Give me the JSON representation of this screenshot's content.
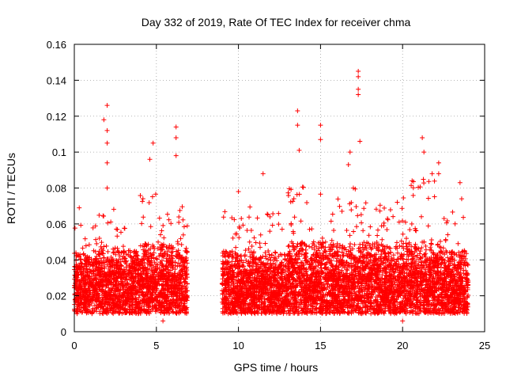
{
  "chart_data": {
    "type": "scatter",
    "title": "Day 332 of 2019, Rate Of TEC Index for receiver chma",
    "xlabel": "GPS time / hours",
    "ylabel": "ROTI / TECUs",
    "xlim": [
      0,
      25
    ],
    "ylim": [
      0,
      0.16
    ],
    "x_ticks": [
      0,
      5,
      10,
      15,
      20,
      25
    ],
    "y_ticks": [
      0,
      0.02,
      0.04,
      0.06,
      0.08,
      0.1,
      0.12,
      0.14,
      0.16
    ],
    "x_tick_labels": [
      "0",
      "5",
      "10",
      "15",
      "20",
      "25"
    ],
    "y_tick_labels": [
      "0",
      "0.02",
      "0.04",
      "0.06",
      "0.08",
      "0.1",
      "0.12",
      "0.14",
      "0.16"
    ],
    "grid": true,
    "marker": "+",
    "color": "#ff0000",
    "data_gap_hours": [
      6.9,
      9.0
    ],
    "notable_points": [
      {
        "x": 0.3,
        "y": 0.069
      },
      {
        "x": 1.8,
        "y": 0.118
      },
      {
        "x": 2.0,
        "y": 0.126
      },
      {
        "x": 2.0,
        "y": 0.112
      },
      {
        "x": 2.0,
        "y": 0.105
      },
      {
        "x": 2.0,
        "y": 0.094
      },
      {
        "x": 2.0,
        "y": 0.08
      },
      {
        "x": 4.8,
        "y": 0.105
      },
      {
        "x": 4.6,
        "y": 0.096
      },
      {
        "x": 6.2,
        "y": 0.114
      },
      {
        "x": 6.2,
        "y": 0.108
      },
      {
        "x": 6.2,
        "y": 0.098
      },
      {
        "x": 10.0,
        "y": 0.078
      },
      {
        "x": 11.5,
        "y": 0.088
      },
      {
        "x": 13.6,
        "y": 0.123
      },
      {
        "x": 13.6,
        "y": 0.115
      },
      {
        "x": 13.7,
        "y": 0.101
      },
      {
        "x": 15.0,
        "y": 0.115
      },
      {
        "x": 15.0,
        "y": 0.107
      },
      {
        "x": 16.8,
        "y": 0.1
      },
      {
        "x": 16.7,
        "y": 0.093
      },
      {
        "x": 17.3,
        "y": 0.145
      },
      {
        "x": 17.3,
        "y": 0.142
      },
      {
        "x": 17.3,
        "y": 0.135
      },
      {
        "x": 17.3,
        "y": 0.132
      },
      {
        "x": 17.4,
        "y": 0.106
      },
      {
        "x": 17.0,
        "y": 0.08
      },
      {
        "x": 21.2,
        "y": 0.108
      },
      {
        "x": 21.3,
        "y": 0.1
      },
      {
        "x": 21.8,
        "y": 0.088
      },
      {
        "x": 22.2,
        "y": 0.094
      },
      {
        "x": 22.2,
        "y": 0.088
      },
      {
        "x": 23.5,
        "y": 0.083
      },
      {
        "x": 23.6,
        "y": 0.074
      },
      {
        "x": 20.0,
        "y": 0.006
      },
      {
        "x": 5.4,
        "y": 0.006
      }
    ],
    "density_profile": [
      {
        "from": 0.0,
        "to": 1.5,
        "base_high": 0.045,
        "spike": 0.06
      },
      {
        "from": 1.5,
        "to": 2.5,
        "base_high": 0.05,
        "spike": 0.07
      },
      {
        "from": 2.5,
        "to": 4.0,
        "base_high": 0.045,
        "spike": 0.06
      },
      {
        "from": 4.0,
        "to": 5.2,
        "base_high": 0.05,
        "spike": 0.085
      },
      {
        "from": 5.2,
        "to": 6.9,
        "base_high": 0.05,
        "spike": 0.07
      },
      {
        "from": 9.0,
        "to": 11.0,
        "base_high": 0.045,
        "spike": 0.07
      },
      {
        "from": 11.0,
        "to": 13.0,
        "base_high": 0.045,
        "spike": 0.07
      },
      {
        "from": 13.0,
        "to": 15.5,
        "base_high": 0.05,
        "spike": 0.085
      },
      {
        "from": 15.5,
        "to": 17.5,
        "base_high": 0.05,
        "spike": 0.08
      },
      {
        "from": 17.5,
        "to": 20.5,
        "base_high": 0.05,
        "spike": 0.075
      },
      {
        "from": 20.5,
        "to": 22.5,
        "base_high": 0.05,
        "spike": 0.09
      },
      {
        "from": 22.5,
        "to": 24.0,
        "base_high": 0.045,
        "spike": 0.07
      }
    ]
  }
}
